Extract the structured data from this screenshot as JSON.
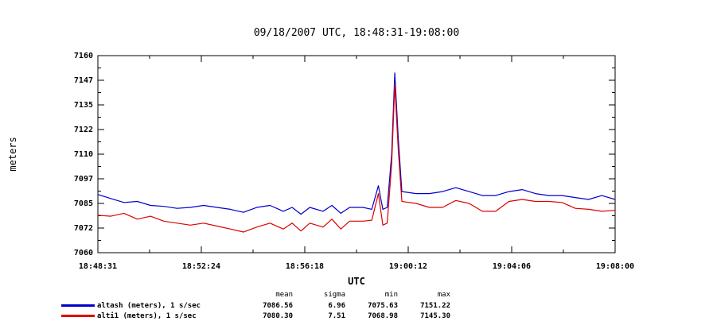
{
  "chart_data": {
    "type": "line",
    "title": "09/18/2007  UTC, 18:48:31-19:08:00",
    "xlabel": "UTC",
    "ylabel": "meters",
    "xlim": [
      "18:48:31",
      "19:08:00"
    ],
    "ylim": [
      7060,
      7160
    ],
    "x_ticks": [
      "18:48:31",
      "18:52:24",
      "18:56:18",
      "19:00:12",
      "19:04:06",
      "19:08:00"
    ],
    "y_ticks": [
      7160,
      7147,
      7135,
      7122,
      7110,
      7097,
      7085,
      7072,
      7060
    ],
    "grid": false,
    "series": [
      {
        "name": "altash (meters), 1 s/sec",
        "color": "#0000cc",
        "points": [
          [
            "18:48:31",
            7089.5
          ],
          [
            "18:49:00",
            7087.5
          ],
          [
            "18:49:30",
            7085.5
          ],
          [
            "18:50:00",
            7086.0
          ],
          [
            "18:50:30",
            7084.0
          ],
          [
            "18:51:00",
            7083.5
          ],
          [
            "18:51:30",
            7082.5
          ],
          [
            "18:52:00",
            7083.0
          ],
          [
            "18:52:30",
            7084.0
          ],
          [
            "18:53:00",
            7083.0
          ],
          [
            "18:53:30",
            7082.0
          ],
          [
            "18:54:00",
            7080.5
          ],
          [
            "18:54:30",
            7083.0
          ],
          [
            "18:55:00",
            7084.0
          ],
          [
            "18:55:30",
            7081.0
          ],
          [
            "18:55:50",
            7083.0
          ],
          [
            "18:56:10",
            7079.5
          ],
          [
            "18:56:30",
            7083.0
          ],
          [
            "18:57:00",
            7081.0
          ],
          [
            "18:57:20",
            7084.0
          ],
          [
            "18:57:40",
            7080.0
          ],
          [
            "18:58:00",
            7083.0
          ],
          [
            "18:58:30",
            7083.0
          ],
          [
            "18:58:50",
            7082.0
          ],
          [
            "18:59:05",
            7094.0
          ],
          [
            "18:59:15",
            7082.0
          ],
          [
            "18:59:25",
            7083.0
          ],
          [
            "18:59:35",
            7110.0
          ],
          [
            "18:59:42",
            7151.2
          ],
          [
            "18:59:50",
            7118.0
          ],
          [
            "18:59:58",
            7091.0
          ],
          [
            "19:00:30",
            7090.0
          ],
          [
            "19:01:00",
            7090.0
          ],
          [
            "19:01:30",
            7091.0
          ],
          [
            "19:02:00",
            7093.0
          ],
          [
            "19:02:30",
            7091.0
          ],
          [
            "19:03:00",
            7089.0
          ],
          [
            "19:03:30",
            7089.0
          ],
          [
            "19:04:00",
            7091.0
          ],
          [
            "19:04:30",
            7092.0
          ],
          [
            "19:05:00",
            7090.0
          ],
          [
            "19:05:30",
            7089.0
          ],
          [
            "19:06:00",
            7089.0
          ],
          [
            "19:06:30",
            7088.0
          ],
          [
            "19:07:00",
            7087.0
          ],
          [
            "19:07:30",
            7089.0
          ],
          [
            "19:08:00",
            7087.0
          ]
        ]
      },
      {
        "name": "alti1 (meters), 1 s/sec",
        "color": "#dd0000",
        "points": [
          [
            "18:48:31",
            7079.0
          ],
          [
            "18:49:00",
            7078.5
          ],
          [
            "18:49:30",
            7080.0
          ],
          [
            "18:50:00",
            7077.0
          ],
          [
            "18:50:30",
            7078.5
          ],
          [
            "18:51:00",
            7076.0
          ],
          [
            "18:51:30",
            7075.0
          ],
          [
            "18:52:00",
            7074.0
          ],
          [
            "18:52:30",
            7075.0
          ],
          [
            "18:53:00",
            7073.5
          ],
          [
            "18:53:30",
            7072.0
          ],
          [
            "18:54:00",
            7070.5
          ],
          [
            "18:54:30",
            7073.0
          ],
          [
            "18:55:00",
            7075.0
          ],
          [
            "18:55:30",
            7072.0
          ],
          [
            "18:55:50",
            7075.0
          ],
          [
            "18:56:10",
            7071.0
          ],
          [
            "18:56:30",
            7075.0
          ],
          [
            "18:57:00",
            7073.0
          ],
          [
            "18:57:20",
            7077.0
          ],
          [
            "18:57:40",
            7072.0
          ],
          [
            "18:58:00",
            7076.0
          ],
          [
            "18:58:30",
            7076.0
          ],
          [
            "18:58:50",
            7076.5
          ],
          [
            "18:59:05",
            7090.0
          ],
          [
            "18:59:15",
            7074.0
          ],
          [
            "18:59:25",
            7075.0
          ],
          [
            "18:59:35",
            7105.0
          ],
          [
            "18:59:42",
            7145.3
          ],
          [
            "18:59:50",
            7112.0
          ],
          [
            "18:59:58",
            7086.0
          ],
          [
            "19:00:30",
            7085.0
          ],
          [
            "19:01:00",
            7083.0
          ],
          [
            "19:01:30",
            7083.0
          ],
          [
            "19:02:00",
            7086.5
          ],
          [
            "19:02:30",
            7085.0
          ],
          [
            "19:03:00",
            7081.0
          ],
          [
            "19:03:30",
            7081.0
          ],
          [
            "19:04:00",
            7086.0
          ],
          [
            "19:04:30",
            7087.0
          ],
          [
            "19:05:00",
            7086.0
          ],
          [
            "19:05:30",
            7086.0
          ],
          [
            "19:06:00",
            7085.5
          ],
          [
            "19:06:30",
            7082.5
          ],
          [
            "19:07:00",
            7082.0
          ],
          [
            "19:07:30",
            7081.0
          ],
          [
            "19:08:00",
            7081.5
          ]
        ]
      }
    ],
    "stats": {
      "headers": [
        "mean",
        "sigma",
        "min",
        "max"
      ],
      "rows": [
        {
          "values": [
            "7086.56",
            "6.96",
            "7075.63",
            "7151.22"
          ]
        },
        {
          "values": [
            "7080.30",
            "7.51",
            "7068.98",
            "7145.30"
          ]
        }
      ]
    }
  }
}
